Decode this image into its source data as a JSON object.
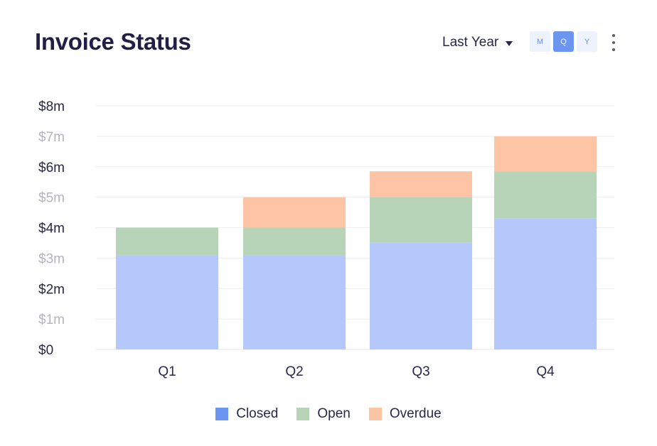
{
  "header": {
    "title": "Invoice Status",
    "range_label": "Last Year",
    "periods": [
      {
        "label": "M",
        "active": false
      },
      {
        "label": "Q",
        "active": true
      },
      {
        "label": "Y",
        "active": false
      }
    ]
  },
  "colors": {
    "closed": "#b5c8fb",
    "open": "#b7d3b8",
    "overdue": "#fdc5a6",
    "closed_legend": "#6b95f0",
    "open_legend": "#b7d3b8",
    "overdue_legend": "#fdc5a6"
  },
  "chart_data": {
    "type": "bar",
    "stacked": true,
    "categories": [
      "Q1",
      "Q2",
      "Q3",
      "Q4"
    ],
    "series": [
      {
        "name": "Closed",
        "values": [
          3.1,
          3.1,
          3.5,
          4.3
        ]
      },
      {
        "name": "Open",
        "values": [
          0.9,
          0.9,
          1.5,
          1.55
        ]
      },
      {
        "name": "Overdue",
        "values": [
          0,
          1.0,
          0.85,
          1.15
        ]
      }
    ],
    "ylim": [
      0,
      8
    ],
    "yticks": [
      "$0",
      "$1m",
      "$2m",
      "$3m",
      "$4m",
      "$5m",
      "$6m",
      "$7m",
      "$8m"
    ],
    "grid": true,
    "legend_position": "bottom"
  }
}
